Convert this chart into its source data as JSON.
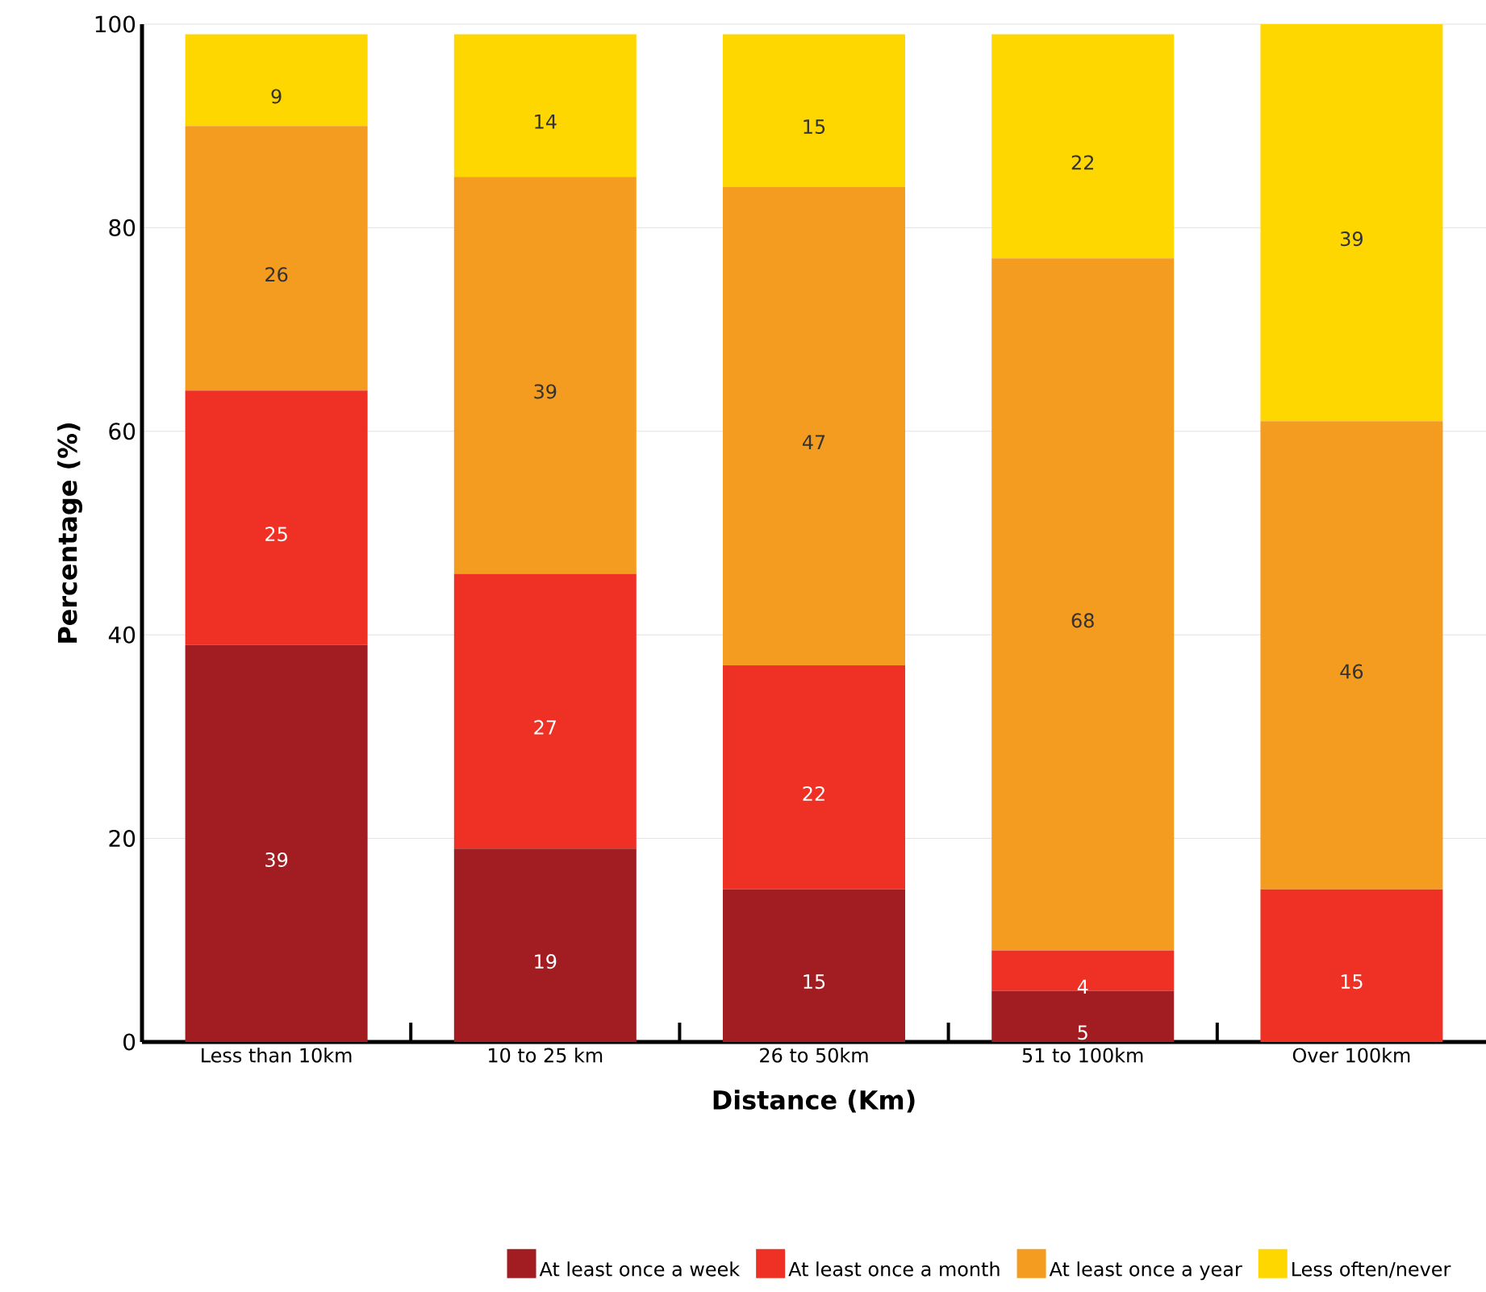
{
  "chart_data": {
    "type": "bar",
    "stacked": true,
    "xlabel": "Distance (Km)",
    "ylabel": "Percentage (%)",
    "categories": [
      "Less than 10km",
      "10 to 25 km",
      "26 to 50km",
      "51 to 100km",
      "Over 100km"
    ],
    "series": [
      {
        "name": "At least once a week",
        "color": "#a11d21",
        "values": [
          39,
          19,
          15,
          5,
          null
        ]
      },
      {
        "name": "At least once a month",
        "color": "#ee3124",
        "values": [
          25,
          27,
          22,
          4,
          15
        ]
      },
      {
        "name": "At least once a year",
        "color": "#f39c1f",
        "values": [
          26,
          39,
          47,
          68,
          46
        ]
      },
      {
        "name": "Less often/never",
        "color": "#ffd700",
        "values": [
          9,
          14,
          15,
          22,
          39
        ]
      }
    ],
    "ylim": [
      0,
      100
    ],
    "yticks": [
      0,
      20,
      40,
      60,
      80,
      100
    ],
    "grid": "y",
    "legend": "bottom",
    "data_labels": true
  }
}
